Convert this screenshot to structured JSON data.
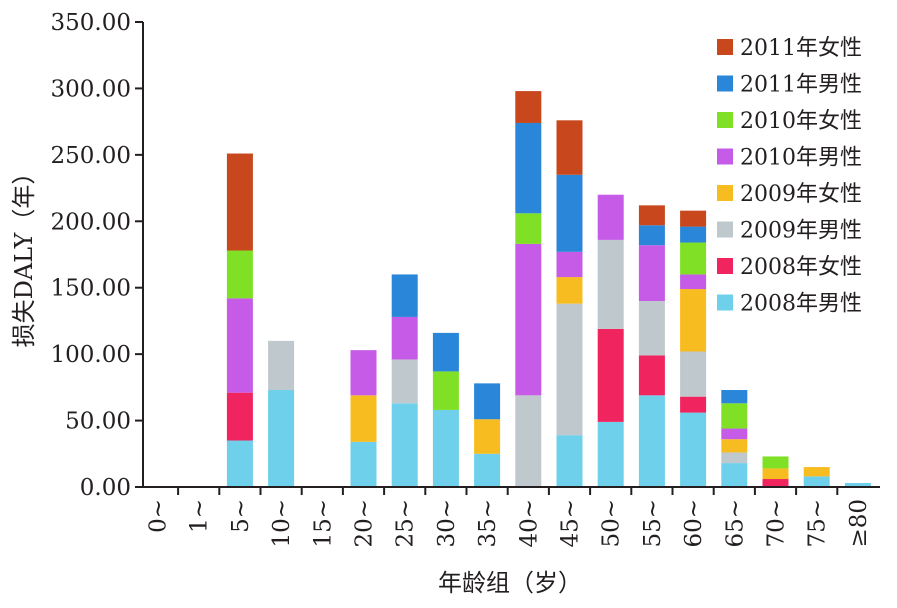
{
  "chart_data": {
    "type": "bar",
    "stacked": true,
    "title": "",
    "xlabel": "年龄组（岁）",
    "ylabel": "损失DALY（年）",
    "ylim": [
      0,
      350
    ],
    "yticks": [
      "0.00",
      "50.00",
      "100.00",
      "150.00",
      "200.00",
      "250.00",
      "300.00",
      "350.00"
    ],
    "categories": [
      "0~",
      "1~",
      "5~",
      "10~",
      "15~",
      "20~",
      "25~",
      "30~",
      "35~",
      "40~",
      "45~",
      "50~",
      "55~",
      "60~",
      "65~",
      "70~",
      "75~",
      "≥80"
    ],
    "series": [
      {
        "name": "2008年男性",
        "color": "#6fd0ec",
        "values": [
          0,
          0,
          35,
          73,
          0,
          34,
          63,
          58,
          25,
          0,
          39,
          49,
          69,
          56,
          18,
          0,
          8,
          3
        ]
      },
      {
        "name": "2008年女性",
        "color": "#f0245e",
        "values": [
          0,
          0,
          36,
          0,
          0,
          0,
          0,
          0,
          0,
          0,
          0,
          70,
          30,
          12,
          0,
          6,
          0,
          0
        ]
      },
      {
        "name": "2009年男性",
        "color": "#bfc8cc",
        "values": [
          0,
          0,
          0,
          37,
          0,
          0,
          33,
          0,
          0,
          69,
          99,
          67,
          41,
          34,
          8,
          0,
          0,
          0
        ]
      },
      {
        "name": "2009年女性",
        "color": "#f7bc1f",
        "values": [
          0,
          0,
          0,
          0,
          0,
          35,
          0,
          0,
          26,
          0,
          20,
          0,
          0,
          47,
          10,
          8,
          7,
          0
        ]
      },
      {
        "name": "2010年男性",
        "color": "#c55be6",
        "values": [
          0,
          0,
          71,
          0,
          0,
          34,
          32,
          0,
          0,
          114,
          19,
          34,
          42,
          11,
          8,
          0,
          0,
          0
        ]
      },
      {
        "name": "2010年女性",
        "color": "#80e026",
        "values": [
          0,
          0,
          36,
          0,
          0,
          0,
          0,
          29,
          0,
          23,
          0,
          0,
          0,
          24,
          19,
          9,
          0,
          0
        ]
      },
      {
        "name": "2011年男性",
        "color": "#2a86d8",
        "values": [
          0,
          0,
          0,
          0,
          0,
          0,
          32,
          29,
          27,
          68,
          58,
          0,
          15,
          12,
          10,
          0,
          0,
          0
        ]
      },
      {
        "name": "2011年女性",
        "color": "#c8471c",
        "values": [
          0,
          0,
          73,
          0,
          0,
          0,
          0,
          0,
          0,
          24,
          41,
          0,
          15,
          12,
          0,
          0,
          0,
          0
        ]
      }
    ],
    "legend_position": "top-right",
    "grid": false
  }
}
